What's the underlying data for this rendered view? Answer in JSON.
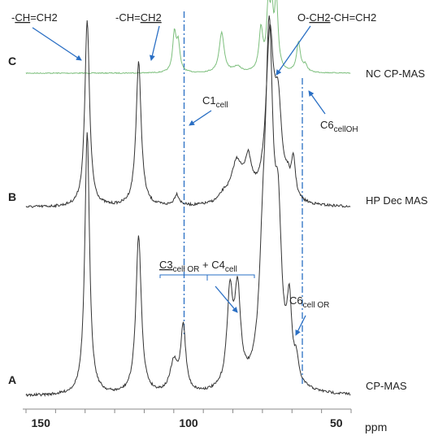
{
  "chart_data": {
    "type": "line",
    "x_axis": {
      "label": "ppm",
      "range": [
        155,
        45
      ],
      "reversed": true,
      "ticks": [
        150,
        100,
        50
      ],
      "tick_labels": [
        "150",
        "100",
        "50"
      ]
    },
    "grid": false,
    "series": [
      {
        "name": "NC CP-MAS",
        "letter": "C",
        "color": "#7dbf7d",
        "peaks": [
          {
            "ppm": 104.8,
            "height": 0.55,
            "width": 0.7
          },
          {
            "ppm": 103.5,
            "height": 0.4,
            "width": 0.7
          },
          {
            "ppm": 88.8,
            "height": 0.58,
            "width": 1.0
          },
          {
            "ppm": 83.5,
            "height": 0.08,
            "width": 1.5
          },
          {
            "ppm": 75.5,
            "height": 0.6,
            "width": 0.8
          },
          {
            "ppm": 73.0,
            "height": 0.9,
            "width": 0.7
          },
          {
            "ppm": 71.8,
            "height": 0.72,
            "width": 0.6
          },
          {
            "ppm": 70.3,
            "height": 1.0,
            "width": 0.7
          },
          {
            "ppm": 62.8,
            "height": 0.42,
            "width": 0.8
          },
          {
            "ppm": 60.5,
            "height": 0.1,
            "width": 0.8
          }
        ]
      },
      {
        "name": "HP Dec MAS",
        "letter": "B",
        "color": "#333333",
        "peaks": [
          {
            "ppm": 134.3,
            "height": 1.0,
            "width": 0.95
          },
          {
            "ppm": 116.9,
            "height": 0.77,
            "width": 1.05
          },
          {
            "ppm": 104.0,
            "height": 0.06,
            "width": 1.0
          },
          {
            "ppm": 88.0,
            "height": 0.04,
            "width": 2.0
          },
          {
            "ppm": 83.7,
            "height": 0.21,
            "width": 2.2
          },
          {
            "ppm": 79.8,
            "height": 0.2,
            "width": 1.5
          },
          {
            "ppm": 72.5,
            "height": 0.86,
            "width": 1.6
          },
          {
            "ppm": 69.7,
            "height": 0.45,
            "width": 1.4
          },
          {
            "ppm": 66.5,
            "height": 0.08,
            "width": 1.2
          },
          {
            "ppm": 64.5,
            "height": 0.2,
            "width": 0.8
          }
        ]
      },
      {
        "name": "CP-MAS",
        "letter": "A",
        "color": "#333333",
        "peaks": [
          {
            "ppm": 134.3,
            "height": 0.8,
            "width": 0.95
          },
          {
            "ppm": 116.9,
            "height": 0.48,
            "width": 1.1
          },
          {
            "ppm": 105.0,
            "height": 0.09,
            "width": 1.5
          },
          {
            "ppm": 101.8,
            "height": 0.2,
            "width": 1.0
          },
          {
            "ppm": 86.0,
            "height": 0.28,
            "width": 1.2
          },
          {
            "ppm": 83.4,
            "height": 0.28,
            "width": 1.2
          },
          {
            "ppm": 74.9,
            "height": 0.25,
            "width": 1.4
          },
          {
            "ppm": 72.7,
            "height": 1.0,
            "width": 1.6
          },
          {
            "ppm": 69.7,
            "height": 0.42,
            "width": 1.4
          },
          {
            "ppm": 65.9,
            "height": 0.22,
            "width": 1.0
          },
          {
            "ppm": 63.5,
            "height": 0.06,
            "width": 0.8
          }
        ]
      }
    ],
    "reference_lines": [
      {
        "ppm": 101.5,
        "style": "dash-dot",
        "color": "#2a6fc4"
      },
      {
        "ppm": 61.5,
        "style": "dash-dot",
        "color": "#2a6fc4"
      }
    ],
    "annotations": {
      "vinyl_ch": {
        "pre": "-",
        "ul": "CH",
        "post": "=CH2"
      },
      "vinyl_ch2": {
        "pre": "-CH=",
        "ul": "CH2"
      },
      "allyl_och2": {
        "pre": "O-",
        "ul": "CH2",
        "post": "-CH=CH2"
      },
      "c1": {
        "main": "C1",
        "sub": "cell"
      },
      "c6_oh": {
        "main": "C6",
        "sub": "cellOH"
      },
      "c3_c4": {
        "m1": "C3",
        "s1": "cell OR",
        "plus": " + ",
        "m2": "C4",
        "s2": "cell"
      },
      "c6_or": {
        "main": "C6",
        "sub": "cell OR"
      }
    },
    "arrow_color": "#2a6fc4"
  }
}
